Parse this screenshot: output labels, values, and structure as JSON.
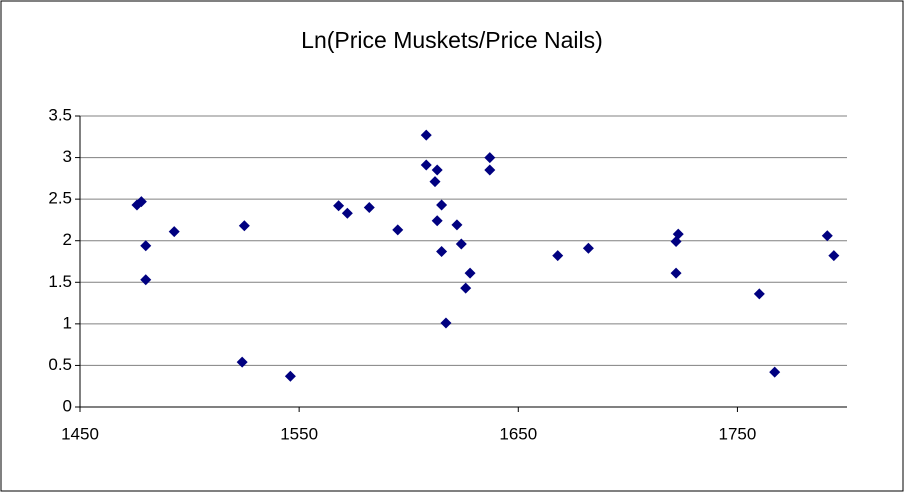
{
  "chart_data": {
    "type": "scatter",
    "title": "Ln(Price Muskets/Price Nails)",
    "series": [
      {
        "color": "#000080",
        "x": [
          1476,
          1478,
          1480,
          1480,
          1493,
          1525,
          1524,
          1546,
          1568,
          1572,
          1582,
          1595,
          1608,
          1608,
          1613,
          1612,
          1615,
          1613,
          1615,
          1617,
          1622,
          1624,
          1628,
          1626,
          1637,
          1637,
          1668,
          1682,
          1723,
          1722,
          1722,
          1760,
          1767,
          1791,
          1794
        ],
        "values": [
          2.43,
          2.47,
          1.94,
          1.53,
          2.11,
          2.18,
          0.54,
          0.37,
          2.42,
          2.33,
          2.4,
          2.13,
          3.27,
          2.91,
          2.85,
          2.71,
          2.43,
          2.24,
          1.87,
          1.01,
          2.19,
          1.96,
          1.61,
          1.43,
          3.0,
          2.85,
          1.82,
          1.91,
          2.08,
          1.99,
          1.61,
          1.36,
          0.42,
          2.06,
          1.82
        ]
      }
    ],
    "xlim": [
      1450,
      1800
    ],
    "xticks": [
      1450,
      1550,
      1650,
      1750
    ],
    "ylim": [
      0,
      3.5
    ],
    "yticks": [
      0,
      0.5,
      1,
      1.5,
      2,
      2.5,
      3,
      3.5
    ],
    "grid": true
  }
}
